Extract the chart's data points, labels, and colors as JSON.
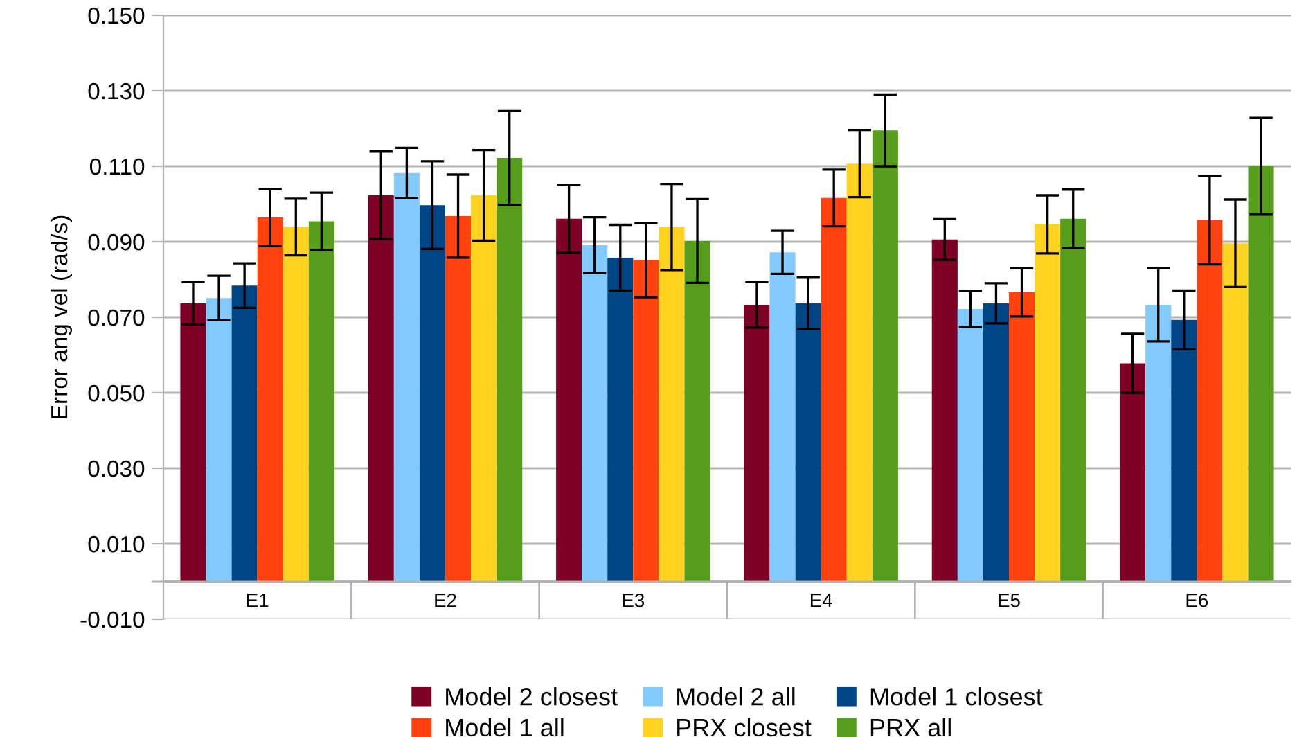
{
  "chart_data": {
    "type": "bar",
    "ylabel": "Error ang vel (rad/s)",
    "categories": [
      "E1",
      "E2",
      "E3",
      "E4",
      "E5",
      "E6"
    ],
    "series": [
      {
        "name": "Model 2 closest",
        "color": "#7f0025",
        "values": [
          0.0737,
          0.1023,
          0.0961,
          0.0733,
          0.0906,
          0.0578
        ],
        "errors": [
          0.0056,
          0.0116,
          0.009,
          0.006,
          0.0054,
          0.0078
        ]
      },
      {
        "name": "Model 2 all",
        "color": "#83caff",
        "values": [
          0.0751,
          0.1082,
          0.0891,
          0.0872,
          0.0722,
          0.0733
        ],
        "errors": [
          0.0059,
          0.0067,
          0.0074,
          0.0057,
          0.0048,
          0.0097
        ]
      },
      {
        "name": "Model 1 closest",
        "color": "#004586",
        "values": [
          0.0784,
          0.0997,
          0.0858,
          0.0737,
          0.0737,
          0.0693
        ],
        "errors": [
          0.0059,
          0.0116,
          0.0087,
          0.0068,
          0.0053,
          0.0078
        ]
      },
      {
        "name": "Model 1 all",
        "color": "#ff420e",
        "values": [
          0.0964,
          0.0968,
          0.0851,
          0.1016,
          0.0766,
          0.0957
        ],
        "errors": [
          0.0075,
          0.011,
          0.0098,
          0.0075,
          0.0064,
          0.0117
        ]
      },
      {
        "name": "PRX closest",
        "color": "#ffd320",
        "values": [
          0.0939,
          0.1023,
          0.0939,
          0.1107,
          0.0946,
          0.0896
        ],
        "errors": [
          0.0075,
          0.012,
          0.0114,
          0.0089,
          0.0077,
          0.0116
        ]
      },
      {
        "name": "PRX all",
        "color": "#579d1c",
        "values": [
          0.0954,
          0.1122,
          0.0902,
          0.1195,
          0.0961,
          0.11
        ],
        "errors": [
          0.0076,
          0.0124,
          0.0111,
          0.0095,
          0.0077,
          0.0128
        ]
      }
    ],
    "ylim": [
      -0.01,
      0.15
    ],
    "yticks": [
      {
        "value": -0.01,
        "label": "-0.010"
      },
      {
        "value": 0,
        "label": null
      },
      {
        "value": 0.01,
        "label": "0.010"
      },
      {
        "value": 0.03,
        "label": "0.030"
      },
      {
        "value": 0.05,
        "label": "0.050"
      },
      {
        "value": 0.07,
        "label": "0.070"
      },
      {
        "value": 0.09,
        "label": "0.090"
      },
      {
        "value": 0.11,
        "label": "0.110"
      },
      {
        "value": 0.13,
        "label": "0.130"
      },
      {
        "value": 0.15,
        "label": "0.150"
      }
    ],
    "grid": "y",
    "legend": "bottom"
  }
}
